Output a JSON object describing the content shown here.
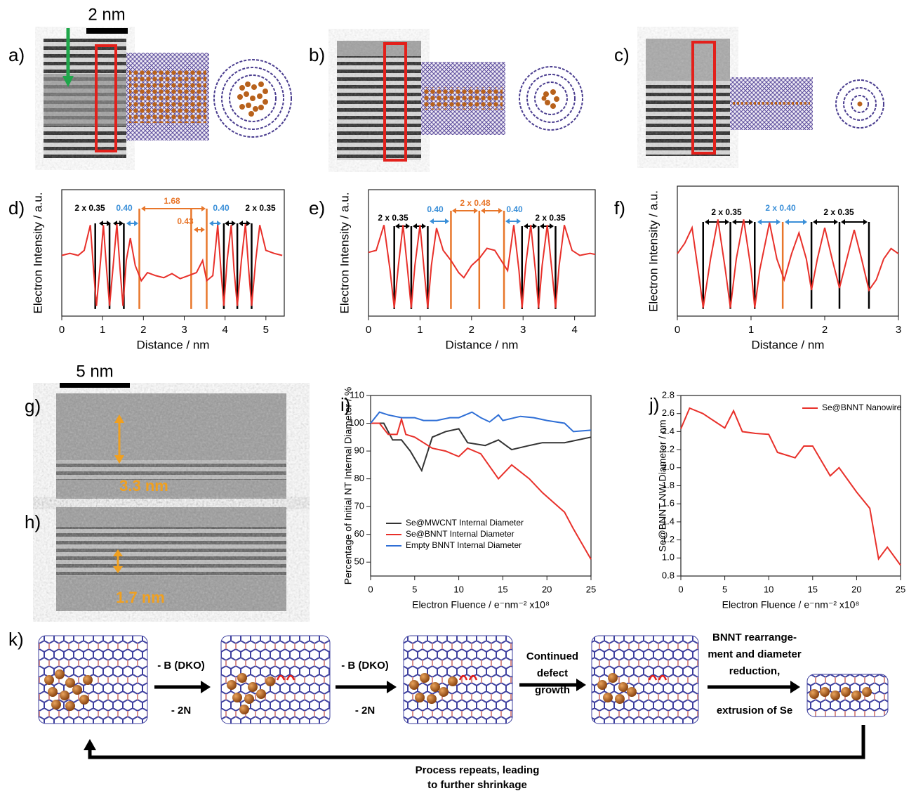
{
  "panel_labels": [
    "a)",
    "b)",
    "c)",
    "d)",
    "e)",
    "f)",
    "g)",
    "h)",
    "i)",
    "j)",
    "k)"
  ],
  "scale_bars": [
    "2 nm",
    "5 nm"
  ],
  "image_annotations": [
    "3.3 nm",
    "1.7 nm"
  ],
  "chart_data": [
    {
      "type": "line",
      "x_label": "Distance / nm",
      "y_label": "Electron Intensity / a.u.",
      "xlim": [
        0,
        5.45
      ],
      "xticks": [
        0,
        1,
        2,
        3,
        4,
        5
      ],
      "ylim": [
        -0.05,
        1.2
      ],
      "series": [
        {
          "color": "#e8302a",
          "x": [
            0,
            0.2,
            0.4,
            0.55,
            0.7,
            0.78,
            0.85,
            0.95,
            1.02,
            1.1,
            1.17,
            1.27,
            1.35,
            1.43,
            1.5,
            1.58,
            1.68,
            1.8,
            1.95,
            2.1,
            2.3,
            2.5,
            2.7,
            2.9,
            3.1,
            3.3,
            3.45,
            3.55,
            3.7,
            3.82,
            3.9,
            3.97,
            4.05,
            4.15,
            4.22,
            4.3,
            4.4,
            4.5,
            4.58,
            4.65,
            4.75,
            4.85,
            5.0,
            5.2,
            5.4
          ],
          "values": [
            0.55,
            0.57,
            0.55,
            0.6,
            0.85,
            0.4,
            0.05,
            0.5,
            0.85,
            0.4,
            0.05,
            0.5,
            0.86,
            0.4,
            0.05,
            0.5,
            0.72,
            0.45,
            0.3,
            0.38,
            0.35,
            0.33,
            0.37,
            0.32,
            0.35,
            0.38,
            0.5,
            0.3,
            0.35,
            0.85,
            0.4,
            0.05,
            0.5,
            0.85,
            0.4,
            0.05,
            0.5,
            0.86,
            0.4,
            0.05,
            0.5,
            0.85,
            0.6,
            0.57,
            0.55
          ]
        }
      ],
      "guide_lines": [
        {
          "x": 0.82,
          "color": "#000000"
        },
        {
          "x": 1.17,
          "color": "#000000"
        },
        {
          "x": 1.52,
          "color": "#000000"
        },
        {
          "x": 1.9,
          "color": "#e8762a"
        },
        {
          "x": 3.17,
          "color": "#e8762a"
        },
        {
          "x": 3.55,
          "color": "#e8762a"
        },
        {
          "x": 3.97,
          "color": "#000000"
        },
        {
          "x": 4.3,
          "color": "#000000"
        },
        {
          "x": 4.65,
          "color": "#000000"
        }
      ],
      "annotations": [
        {
          "text": "2 x 0.35",
          "color": "#000000"
        },
        {
          "text": "0.40",
          "color": "#3a8fd8"
        },
        {
          "text": "1.68",
          "color": "#e8762a"
        },
        {
          "text": "0.43",
          "color": "#e8762a"
        },
        {
          "text": "0.40",
          "color": "#3a8fd8"
        },
        {
          "text": "2 x 0.35",
          "color": "#000000"
        }
      ]
    },
    {
      "type": "line",
      "x_label": "Distance / nm",
      "y_label": "Electron Intensity / a.u.",
      "xlim": [
        0,
        4.4
      ],
      "xticks": [
        0,
        1,
        2,
        3,
        4
      ],
      "ylim": [
        -0.05,
        1.2
      ],
      "series": [
        {
          "color": "#e8302a",
          "x": [
            0,
            0.15,
            0.3,
            0.42,
            0.5,
            0.58,
            0.67,
            0.76,
            0.83,
            0.9,
            1.0,
            1.08,
            1.15,
            1.22,
            1.32,
            1.45,
            1.6,
            1.75,
            1.85,
            2.0,
            2.15,
            2.3,
            2.45,
            2.6,
            2.7,
            2.82,
            2.92,
            2.98,
            3.05,
            3.15,
            3.24,
            3.3,
            3.37,
            3.47,
            3.56,
            3.63,
            3.7,
            3.8,
            3.95,
            4.1,
            4.3,
            4.4
          ],
          "values": [
            0.58,
            0.6,
            0.85,
            0.4,
            0.03,
            0.45,
            0.85,
            0.4,
            0.03,
            0.45,
            0.85,
            0.4,
            0.03,
            0.45,
            0.82,
            0.6,
            0.5,
            0.38,
            0.33,
            0.45,
            0.52,
            0.62,
            0.6,
            0.48,
            0.4,
            0.85,
            0.4,
            0.03,
            0.45,
            0.85,
            0.4,
            0.03,
            0.45,
            0.85,
            0.4,
            0.03,
            0.45,
            0.85,
            0.6,
            0.55,
            0.57,
            0.56
          ]
        }
      ],
      "guide_lines": [
        {
          "x": 0.5,
          "color": "#000000"
        },
        {
          "x": 0.83,
          "color": "#000000"
        },
        {
          "x": 1.15,
          "color": "#000000"
        },
        {
          "x": 1.6,
          "color": "#e8762a"
        },
        {
          "x": 2.15,
          "color": "#e8762a"
        },
        {
          "x": 2.63,
          "color": "#e8762a"
        },
        {
          "x": 2.98,
          "color": "#000000"
        },
        {
          "x": 3.3,
          "color": "#000000"
        },
        {
          "x": 3.63,
          "color": "#000000"
        }
      ],
      "annotations": [
        {
          "text": "2 x 0.35",
          "color": "#000000"
        },
        {
          "text": "0.40",
          "color": "#3a8fd8"
        },
        {
          "text": "2 x 0.48",
          "color": "#e8762a"
        },
        {
          "text": "0.40",
          "color": "#3a8fd8"
        },
        {
          "text": "2 x 0.35",
          "color": "#000000"
        }
      ]
    },
    {
      "type": "line",
      "x_label": "Distance / nm",
      "y_label": "Electron Intensity / a.u.",
      "xlim": [
        0,
        3
      ],
      "xticks": [
        0,
        1,
        2,
        3
      ],
      "ylim": [
        -0.05,
        1.2
      ],
      "series": [
        {
          "color": "#e8302a",
          "x": [
            0,
            0.1,
            0.2,
            0.3,
            0.35,
            0.45,
            0.55,
            0.65,
            0.72,
            0.8,
            0.9,
            1.0,
            1.05,
            1.12,
            1.25,
            1.35,
            1.45,
            1.55,
            1.65,
            1.75,
            1.82,
            1.9,
            2.0,
            2.1,
            2.2,
            2.3,
            2.4,
            2.5,
            2.6,
            2.7,
            2.8,
            2.9,
            3.0
          ],
          "values": [
            0.55,
            0.65,
            0.8,
            0.3,
            0.03,
            0.5,
            0.88,
            0.4,
            0.03,
            0.5,
            0.88,
            0.4,
            0.03,
            0.4,
            0.85,
            0.5,
            0.3,
            0.55,
            0.75,
            0.5,
            0.2,
            0.5,
            0.8,
            0.5,
            0.22,
            0.5,
            0.78,
            0.5,
            0.2,
            0.3,
            0.5,
            0.6,
            0.55
          ]
        }
      ],
      "guide_lines": [
        {
          "x": 0.35,
          "color": "#000000"
        },
        {
          "x": 0.72,
          "color": "#000000"
        },
        {
          "x": 1.05,
          "color": "#000000"
        },
        {
          "x": 1.43,
          "color": "#e8762a"
        },
        {
          "x": 1.82,
          "color": "#000000"
        },
        {
          "x": 2.2,
          "color": "#000000"
        },
        {
          "x": 2.6,
          "color": "#000000"
        }
      ],
      "annotations": [
        {
          "text": "2 x 0.35",
          "color": "#000000"
        },
        {
          "text": "2 x 0.40",
          "color": "#3a8fd8"
        },
        {
          "text": "2 x 0.35",
          "color": "#000000"
        }
      ]
    },
    {
      "type": "line",
      "x_label": "Electron Fluence / e⁻nm⁻² x10⁸",
      "y_label": "Percentage of Initial NT Internal Diameter / %",
      "xlim": [
        0,
        25
      ],
      "xticks": [
        0,
        5,
        10,
        15,
        20,
        25
      ],
      "ylim": [
        45,
        110
      ],
      "yticks": [
        50,
        60,
        70,
        80,
        90,
        100,
        110
      ],
      "legend": "lower left",
      "series": [
        {
          "name": "Se@MWCNT Internal Diameter",
          "color": "#333333",
          "x": [
            0,
            1.5,
            2.5,
            3.5,
            4.5,
            5.8,
            7,
            8.5,
            10,
            11,
            13,
            14.5,
            16,
            18,
            19.5,
            22,
            25
          ],
          "values": [
            100,
            100,
            94,
            94,
            90,
            83,
            95,
            97,
            98,
            93,
            92,
            94,
            90.5,
            92,
            93,
            93,
            95
          ]
        },
        {
          "name": "Se@BNNT Internal Diameter",
          "color": "#e8302a",
          "x": [
            0,
            1,
            2,
            3,
            3.5,
            4,
            5,
            6,
            7,
            8.5,
            10,
            11,
            12.5,
            14.5,
            16,
            18,
            19.5,
            22,
            23,
            25
          ],
          "values": [
            100,
            100,
            96,
            96,
            101.5,
            96,
            95,
            93,
            91,
            90,
            88,
            91,
            89,
            80,
            85,
            80,
            75,
            68,
            62,
            51
          ]
        },
        {
          "name": "Empty BNNT Internal Diameter",
          "color": "#2f6fd6",
          "x": [
            0,
            1,
            2,
            3.5,
            5,
            6,
            7.5,
            9,
            10,
            11.5,
            12.5,
            13.5,
            14.5,
            15,
            17,
            18.5,
            20,
            22,
            23,
            25
          ],
          "values": [
            100,
            104,
            103,
            102,
            102,
            101,
            101,
            102,
            102,
            104,
            102,
            100.5,
            103,
            101,
            102.5,
            102,
            101,
            100,
            97,
            97.5
          ]
        }
      ]
    },
    {
      "type": "line",
      "x_label": "Electron Fluence / e⁻nm⁻² x10⁸",
      "y_label": "Se@BNNT NW Diameter / nm",
      "xlim": [
        0,
        25
      ],
      "xticks": [
        0,
        5,
        10,
        15,
        20,
        25
      ],
      "ylim": [
        0.8,
        2.8
      ],
      "yticks": [
        0.8,
        {
          "value": 1,
          "label": "1.0"
        },
        1.2,
        1.4,
        1.6,
        1.8,
        {
          "value": 2,
          "label": "2.0"
        },
        2.2,
        2.4,
        2.6,
        2.8
      ],
      "legend": "upper right",
      "series": [
        {
          "name": "Se@BNNT Nanowire",
          "color": "#e8302a",
          "x": [
            0,
            1,
            2.5,
            5,
            6,
            7,
            8.5,
            10,
            11,
            13,
            14,
            15,
            17,
            18,
            20,
            21.5,
            22.5,
            23.5,
            25
          ],
          "values": [
            2.43,
            2.66,
            2.6,
            2.44,
            2.63,
            2.4,
            2.38,
            2.37,
            2.17,
            2.11,
            2.24,
            2.24,
            1.91,
            2.0,
            1.73,
            1.55,
            0.99,
            1.12,
            0.92
          ]
        }
      ]
    }
  ],
  "scheme": {
    "steps": [
      {
        "above": [
          "- B (DKO)"
        ],
        "below": "- 2N"
      },
      {
        "above": [
          "- B (DKO)"
        ],
        "below": "- 2N"
      },
      {
        "above": [
          "Continued",
          "defect",
          "growth"
        ]
      },
      {
        "above": [
          "BNNT rearrange-",
          "ment and diameter",
          "reduction,"
        ],
        "below": "extrusion of Se"
      }
    ],
    "loop": [
      "Process repeats, leading",
      "to further shrinkage"
    ]
  }
}
